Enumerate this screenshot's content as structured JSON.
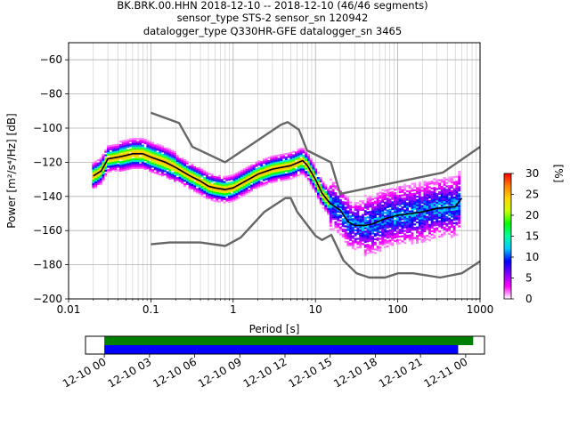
{
  "chart_data": [
    {
      "type": "heatmap",
      "title": [
        "BK.BRK.00.HHN   2018-12-10 -- 2018-12-10  (46/46 segments)",
        "sensor_type STS-2 sensor_sn 120942",
        "datalogger_type Q330HR-GFE datalogger_sn 3465"
      ],
      "xlabel": "Period [s]",
      "ylabel": "Power [m²/s⁴/Hz] [dB]",
      "xscale": "log",
      "xlim": [
        0.01,
        1000
      ],
      "ylim": [
        -200,
        -50
      ],
      "x_ticks": [
        "0.01",
        "0.1",
        "1",
        "10",
        "100",
        "1000"
      ],
      "y_ticks": [
        "−60",
        "−80",
        "−100",
        "−120",
        "−140",
        "−160",
        "−180",
        "−200"
      ],
      "grid": true,
      "colorbar": {
        "label": "[%]",
        "range": [
          0,
          30
        ],
        "ticks": [
          "0",
          "5",
          "10",
          "15",
          "20",
          "25",
          "30"
        ],
        "colormap": [
          "#ffffff",
          "#ff00ff",
          "#8000ff",
          "#0000ff",
          "#00c8ff",
          "#00ffa0",
          "#00ff00",
          "#c8ff00",
          "#ffd700",
          "#ff8000",
          "#ff0000"
        ]
      },
      "series": [
        {
          "kind": "median",
          "color": "#000000",
          "points": [
            [
              0.02,
              -128
            ],
            [
              0.025,
              -125
            ],
            [
              0.03,
              -118
            ],
            [
              0.04,
              -117
            ],
            [
              0.05,
              -116
            ],
            [
              0.06,
              -115
            ],
            [
              0.08,
              -115
            ],
            [
              0.1,
              -117
            ],
            [
              0.15,
              -120
            ],
            [
              0.2,
              -123
            ],
            [
              0.3,
              -128
            ],
            [
              0.4,
              -131
            ],
            [
              0.5,
              -134
            ],
            [
              0.6,
              -135
            ],
            [
              0.8,
              -136
            ],
            [
              1,
              -135
            ],
            [
              1.3,
              -132
            ],
            [
              2,
              -127
            ],
            [
              3,
              -124
            ],
            [
              5,
              -122
            ],
            [
              7,
              -119
            ],
            [
              8,
              -122
            ],
            [
              10,
              -130
            ],
            [
              12,
              -138
            ],
            [
              15,
              -144
            ],
            [
              20,
              -148
            ],
            [
              25,
              -155
            ],
            [
              30,
              -157
            ],
            [
              40,
              -157
            ],
            [
              50,
              -156
            ],
            [
              70,
              -153
            ],
            [
              100,
              -151
            ],
            [
              150,
              -150
            ],
            [
              200,
              -149
            ],
            [
              300,
              -147
            ],
            [
              500,
              -146
            ],
            [
              600,
              -141
            ]
          ]
        },
        {
          "kind": "high-noise-model",
          "color": "#666666",
          "points": [
            [
              0.1,
              -91
            ],
            [
              0.22,
              -97
            ],
            [
              0.32,
              -111
            ],
            [
              0.8,
              -120
            ],
            [
              3.8,
              -98
            ],
            [
              4.6,
              -96.5
            ],
            [
              6.3,
              -101
            ],
            [
              7.9,
              -113
            ],
            [
              15.4,
              -120
            ],
            [
              20,
              -138.5
            ],
            [
              354.8,
              -126
            ],
            [
              1000,
              -111
            ]
          ]
        },
        {
          "kind": "low-noise-model",
          "color": "#666666",
          "points": [
            [
              0.1,
              -168
            ],
            [
              0.17,
              -167
            ],
            [
              0.4,
              -167
            ],
            [
              0.8,
              -169
            ],
            [
              1.24,
              -164
            ],
            [
              2.4,
              -149
            ],
            [
              4.3,
              -141
            ],
            [
              5,
              -141
            ],
            [
              6,
              -149
            ],
            [
              10,
              -163
            ],
            [
              12,
              -165.5
            ],
            [
              15.6,
              -162.5
            ],
            [
              21.9,
              -177.5
            ],
            [
              31.6,
              -185
            ],
            [
              45,
              -187.5
            ],
            [
              70,
              -187.5
            ],
            [
              101,
              -185
            ],
            [
              154,
              -185
            ],
            [
              328,
              -187.5
            ],
            [
              600,
              -185
            ],
            [
              1000,
              -178
            ]
          ]
        }
      ]
    },
    {
      "type": "bar",
      "description_free": true,
      "x_ticks": [
        "12-10 00",
        "12-10 03",
        "12-10 06",
        "12-10 09",
        "12-10 12",
        "12-10 15",
        "12-10 18",
        "12-10 21",
        "12-11 00"
      ],
      "xlim_hours": [
        -1.25,
        25.25
      ],
      "series": [
        {
          "color": "#008000",
          "start_hour": 0,
          "end_hour": 24.5
        },
        {
          "color": "#0000ff",
          "start_hour": 0,
          "end_hour": 23.5
        }
      ]
    }
  ]
}
